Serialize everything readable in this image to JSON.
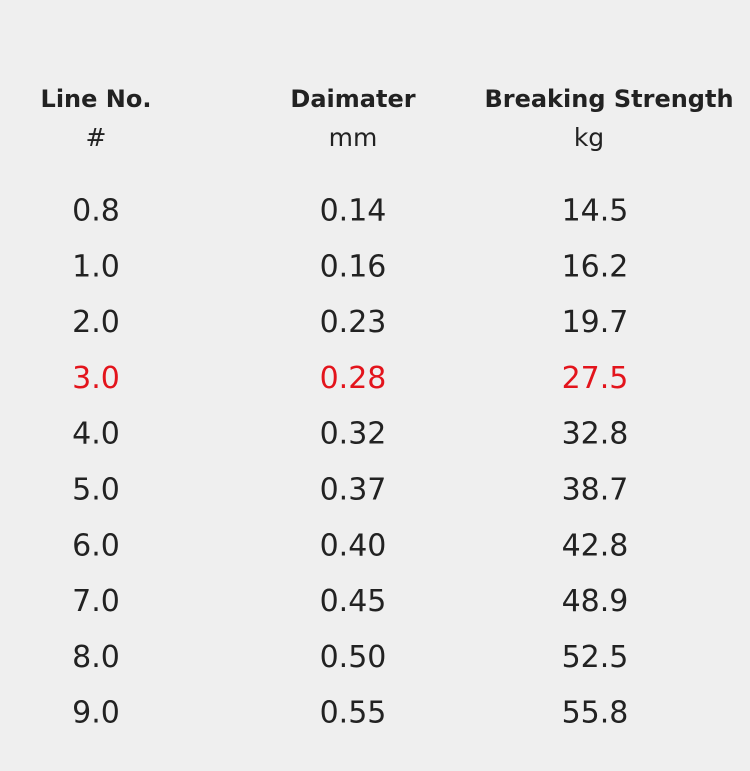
{
  "table": {
    "headers": [
      {
        "title": "Line No.",
        "unit": "#"
      },
      {
        "title": "Daimater",
        "unit": "mm"
      },
      {
        "title": "Breaking Strength",
        "unit": "kg"
      }
    ],
    "rows": [
      {
        "cells": [
          "0.8",
          "0.14",
          "14.5"
        ],
        "color": "#222222"
      },
      {
        "cells": [
          "1.0",
          "0.16",
          "16.2"
        ],
        "color": "#222222"
      },
      {
        "cells": [
          "2.0",
          "0.23",
          "19.7"
        ],
        "color": "#222222"
      },
      {
        "cells": [
          "3.0",
          "0.28",
          "27.5"
        ],
        "color": "#e3141c"
      },
      {
        "cells": [
          "4.0",
          "0.32",
          "32.8"
        ],
        "color": "#222222"
      },
      {
        "cells": [
          "5.0",
          "0.37",
          "38.7"
        ],
        "color": "#222222"
      },
      {
        "cells": [
          "6.0",
          "0.40",
          "42.8"
        ],
        "color": "#222222"
      },
      {
        "cells": [
          "7.0",
          "0.45",
          "48.9"
        ],
        "color": "#222222"
      },
      {
        "cells": [
          "8.0",
          "0.50",
          "52.5"
        ],
        "color": "#222222"
      },
      {
        "cells": [
          "9.0",
          "0.55",
          "55.8"
        ],
        "color": "#222222"
      }
    ]
  }
}
